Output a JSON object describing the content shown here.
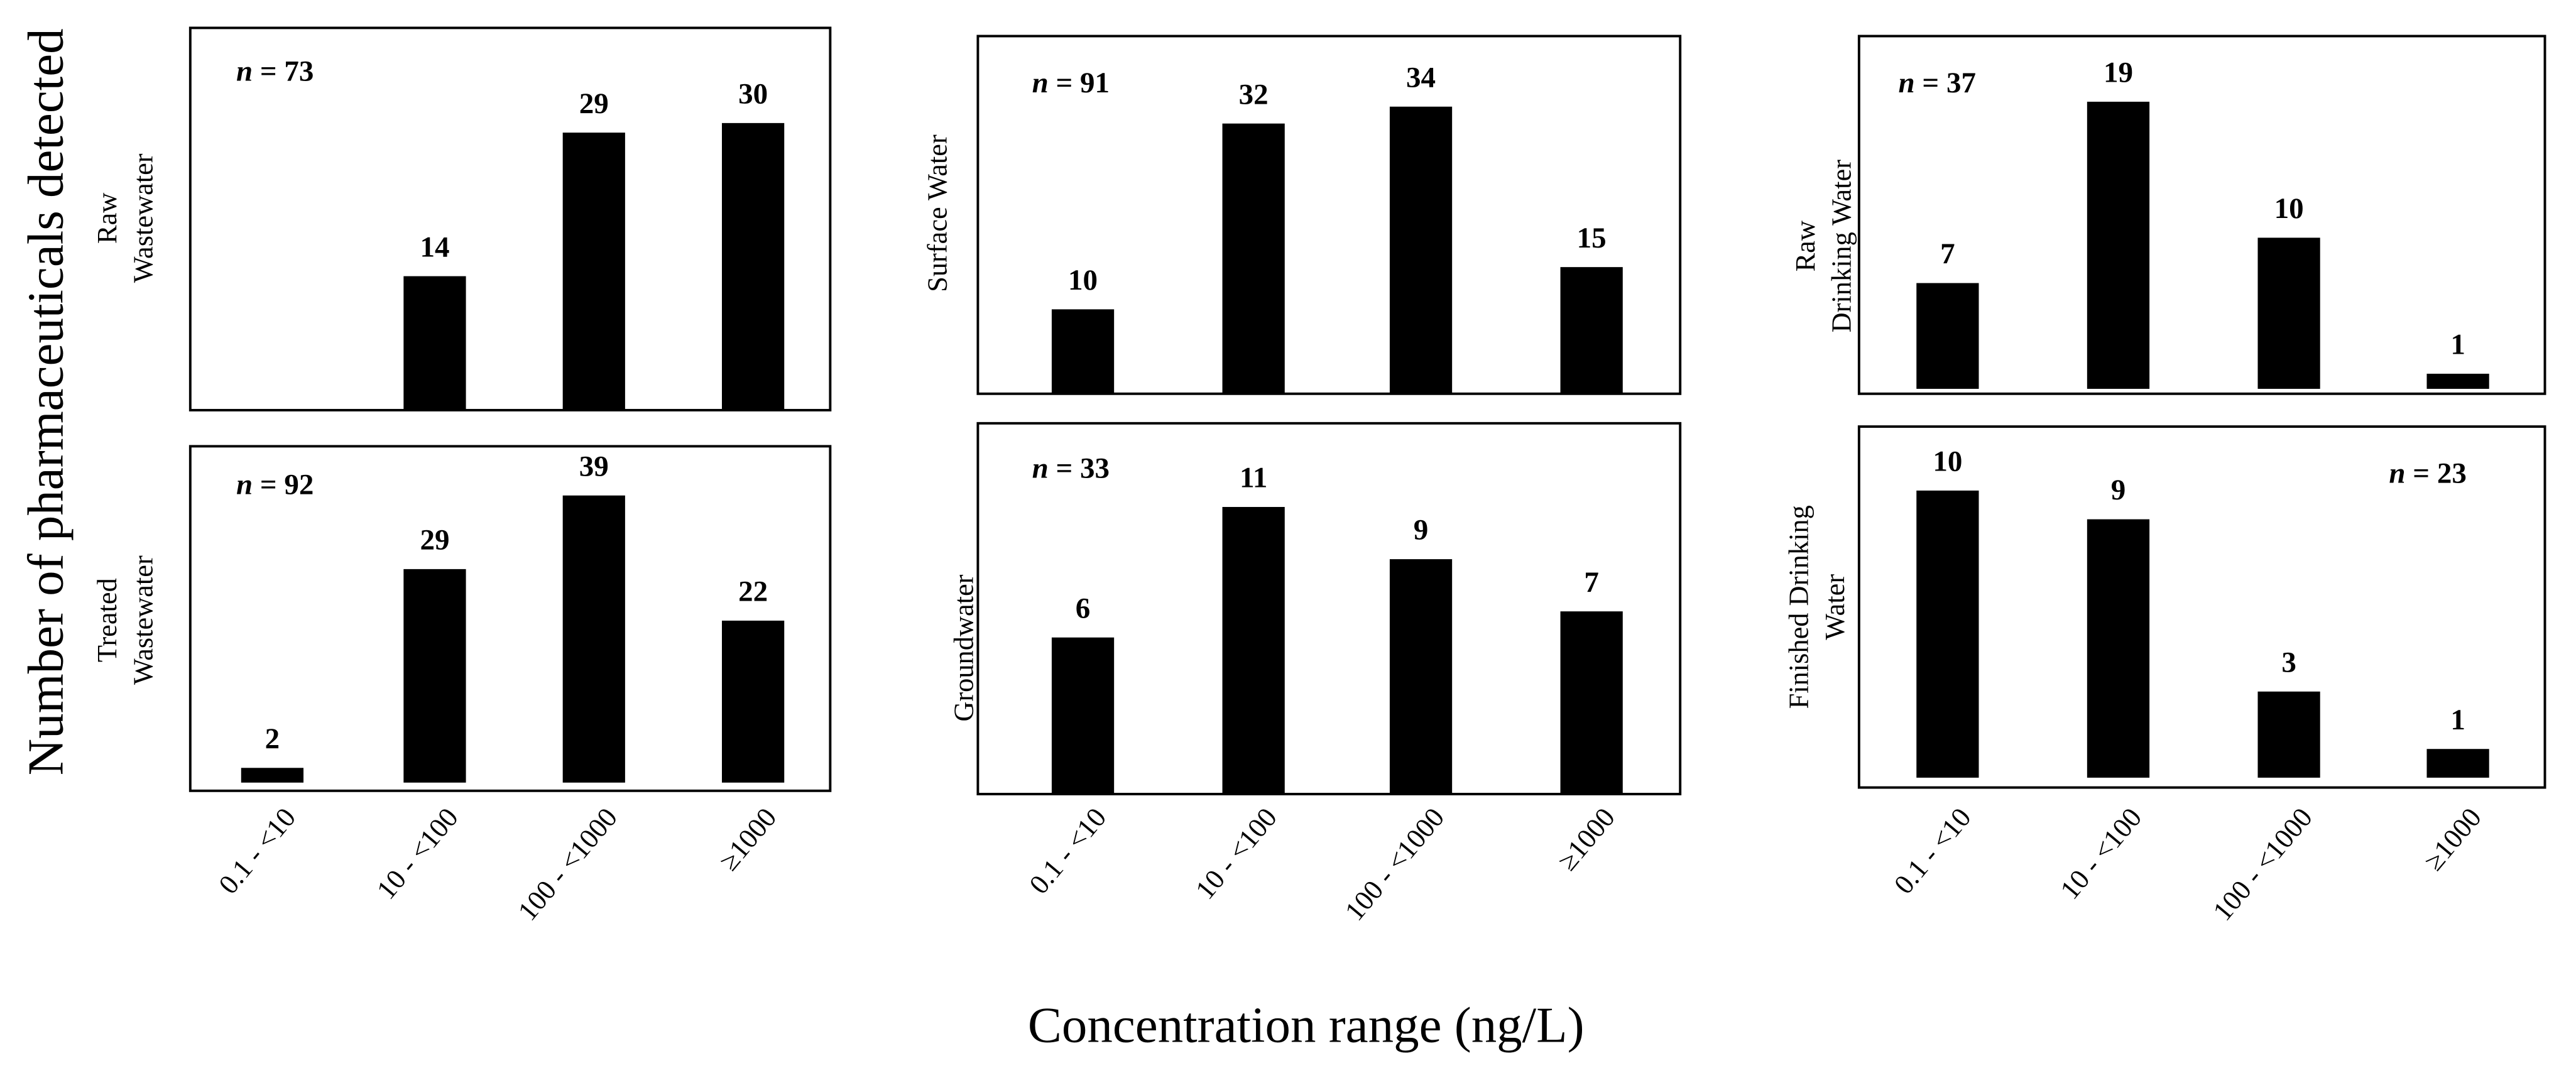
{
  "ylabel": "Number of pharmaceuticals detected",
  "xlabel": "Concentration range (ng/L)",
  "chart_data": [
    {
      "type": "bar",
      "ylabel": [
        "Raw",
        "Wastewater"
      ],
      "annotation": "n = 73",
      "values": [
        0,
        14,
        29,
        30
      ],
      "value_labels": [
        null,
        "14",
        "29",
        "30"
      ],
      "color": "#000000"
    },
    {
      "type": "bar",
      "ylabel": [
        "Surface Water"
      ],
      "annotation": "n = 91",
      "values": [
        10,
        32,
        34,
        15
      ],
      "color": "#000000"
    },
    {
      "type": "bar",
      "ylabel": [
        "Raw",
        "Drinking Water"
      ],
      "annotation": "n = 37",
      "values": [
        7,
        19,
        10,
        1
      ],
      "color": "#000000"
    },
    {
      "type": "bar",
      "ylabel": [
        "Treated",
        "Wastewater"
      ],
      "annotation": "n = 92",
      "categories": [
        "0.1 - <10",
        "10 - <100",
        "100 - <1000",
        "≥1000"
      ],
      "values": [
        2,
        29,
        39,
        22
      ],
      "color": "#000000"
    },
    {
      "type": "bar",
      "ylabel": [
        "Groundwater"
      ],
      "annotation": "n = 33",
      "categories": [
        "0.1 - <10",
        "10 - <100",
        "100 - <1000",
        "≥1000"
      ],
      "values": [
        6,
        11,
        9,
        7
      ],
      "color": "#000000"
    },
    {
      "type": "bar",
      "ylabel": [
        "Finished Drinking",
        "Water"
      ],
      "annotation": "n = 23",
      "categories": [
        "0.1 - <10",
        "10 - <100",
        "100 - <1000",
        "≥1000"
      ],
      "values": [
        10,
        9,
        3,
        1
      ],
      "color": "#000000"
    }
  ]
}
